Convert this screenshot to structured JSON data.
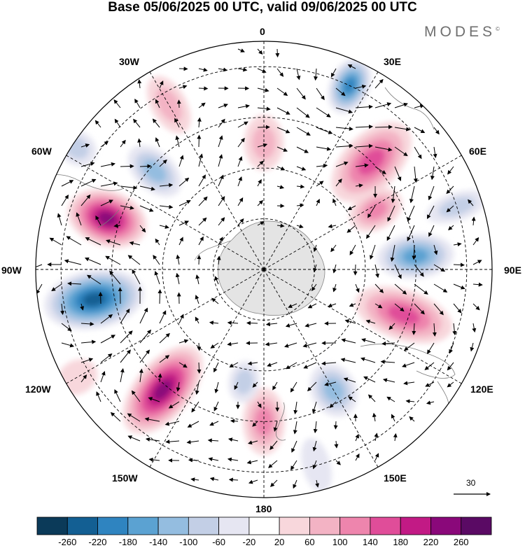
{
  "header": {
    "title": "Base 05/06/2025 00 UTC, valid 09/06/2025 00 UTC",
    "brand": "MODES",
    "brand_mark": "©"
  },
  "longitude_labels": {
    "lon_0": "0",
    "lon_30e": "30E",
    "lon_60e": "60E",
    "lon_90e": "90E",
    "lon_120e": "120E",
    "lon_150e": "150E",
    "lon_180": "180",
    "lon_150w": "150W",
    "lon_120w": "120W",
    "lon_90w": "90W",
    "lon_60w": "60W",
    "lon_30w": "30W"
  },
  "reference_vector": {
    "value": "30"
  },
  "colorbar": {
    "colors": [
      "#0b3a59",
      "#135f93",
      "#2f84c0",
      "#5ba2d2",
      "#94bde0",
      "#c3cfe6",
      "#e6e6f2",
      "#ffffff",
      "#f8d7dc",
      "#f3b3c4",
      "#ee85ad",
      "#e04d99",
      "#c21a85",
      "#8a087a",
      "#5a0a64"
    ],
    "labels": [
      "-260",
      "-220",
      "-180",
      "-140",
      "-100",
      "-60",
      "-20",
      "20",
      "60",
      "100",
      "140",
      "180",
      "220",
      "260"
    ]
  },
  "anomaly_centers": [
    {
      "lon": 25,
      "colat": 80,
      "value": -200,
      "rx": 42,
      "ry": 28
    },
    {
      "lon": 0,
      "colat": 50,
      "value": 110,
      "rx": 40,
      "ry": 28
    },
    {
      "lon": 45,
      "colat": 60,
      "value": 170,
      "rx": 70,
      "ry": 40
    },
    {
      "lon": 62,
      "colat": 50,
      "value": 120,
      "rx": 40,
      "ry": 28
    },
    {
      "lon": 85,
      "colat": 60,
      "value": -170,
      "rx": 55,
      "ry": 32
    },
    {
      "lon": 108,
      "colat": 58,
      "value": 190,
      "rx": 72,
      "ry": 36
    },
    {
      "lon": 150,
      "colat": 55,
      "value": -150,
      "rx": 40,
      "ry": 32
    },
    {
      "lon": 180,
      "colat": 60,
      "value": 130,
      "rx": 48,
      "ry": 30
    },
    {
      "lon": -170,
      "colat": 45,
      "value": -110,
      "rx": 30,
      "ry": 22
    },
    {
      "lon": -140,
      "colat": 62,
      "value": 240,
      "rx": 75,
      "ry": 40
    },
    {
      "lon": -100,
      "colat": 68,
      "value": -250,
      "rx": 72,
      "ry": 42
    },
    {
      "lon": -72,
      "colat": 65,
      "value": 240,
      "rx": 58,
      "ry": 40
    },
    {
      "lon": -48,
      "colat": 58,
      "value": -140,
      "rx": 45,
      "ry": 28
    },
    {
      "lon": -57,
      "colat": 88,
      "value": -110,
      "rx": 30,
      "ry": 24
    },
    {
      "lon": -30,
      "colat": 75,
      "value": 80,
      "rx": 45,
      "ry": 25
    },
    {
      "lon": -120,
      "colat": 85,
      "value": 60,
      "rx": 30,
      "ry": 24
    },
    {
      "lon": 72,
      "colat": 80,
      "value": -80,
      "rx": 45,
      "ry": 20
    },
    {
      "lon": 165,
      "colat": 80,
      "value": -60,
      "rx": 40,
      "ry": 20
    }
  ]
}
